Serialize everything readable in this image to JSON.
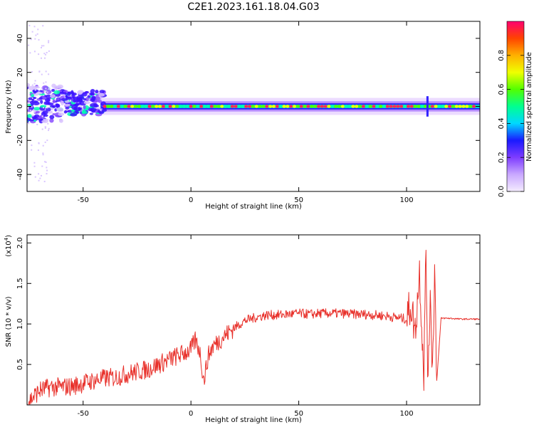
{
  "title": "C2E1.2023.161.18.04.G03",
  "colors": {
    "snr_line": "#e8302a",
    "background": "#ffffff",
    "colorbar_stops": [
      "#f4ecff",
      "#c9a8ff",
      "#7e3cff",
      "#1a1aff",
      "#00d8ff",
      "#00ff90",
      "#52ff00",
      "#f0ff00",
      "#ffb000",
      "#ff4400",
      "#ff0070"
    ]
  },
  "chart_data": [
    {
      "type": "heatmap",
      "xlabel": "Height of straight line (km)",
      "ylabel": "Frequency (Hz)",
      "xlim": [
        -76,
        134
      ],
      "ylim": [
        -50,
        50
      ],
      "xticks": [
        -50,
        0,
        50,
        100
      ],
      "xtick_labels": [
        "-50",
        "0",
        "50",
        "100"
      ],
      "yticks": [
        -40,
        -20,
        0,
        20,
        40
      ],
      "ytick_labels": [
        "-40",
        "-20",
        "0",
        "20",
        "40"
      ],
      "description_band": {
        "center_hz": 0,
        "halfwidth_hz": 2
      },
      "colorbar": {
        "label": "Normalized spectral amplitude",
        "range": [
          0.0,
          1.0
        ],
        "ticks": [
          0.0,
          0.2,
          0.4,
          0.6,
          0.8
        ],
        "tick_labels": [
          "0.0",
          "0.2",
          "0.4",
          "0.6",
          "0.8"
        ]
      }
    },
    {
      "type": "line",
      "xlabel": "Height of straight line (km)",
      "ylabel": "SNR (10 * v/v)",
      "multiplier_label": "(x10",
      "multiplier_exp": "4",
      "multiplier_close": ")",
      "xlim": [
        -76,
        134
      ],
      "ylim": [
        0.0,
        2.1
      ],
      "xticks": [
        -50,
        0,
        50,
        100
      ],
      "xtick_labels": [
        "-50",
        "0",
        "50",
        "100"
      ],
      "yticks": [
        0.5,
        1.0,
        1.5,
        2.0
      ],
      "ytick_labels": [
        "0.5",
        "1.0",
        "1.5",
        "2.0"
      ],
      "series": [
        {
          "x": [
            -76,
            -70,
            -65,
            -60,
            -55,
            -50,
            -45,
            -40,
            -35,
            -30,
            -25,
            -20,
            -15,
            -10,
            -5,
            0,
            2,
            4,
            6,
            8,
            10,
            15,
            20,
            25,
            30,
            35,
            40,
            45,
            50,
            55,
            60,
            65,
            70,
            75,
            80,
            85,
            90,
            95,
            100,
            102,
            104,
            106,
            108,
            109,
            110,
            111,
            112,
            113,
            114,
            116,
            120,
            125,
            130,
            134
          ],
          "values": [
            0.03,
            0.18,
            0.22,
            0.22,
            0.23,
            0.27,
            0.3,
            0.33,
            0.34,
            0.38,
            0.41,
            0.44,
            0.5,
            0.56,
            0.62,
            0.68,
            0.8,
            0.68,
            0.3,
            0.6,
            0.72,
            0.84,
            0.95,
            1.04,
            1.08,
            1.11,
            1.11,
            1.12,
            1.13,
            1.12,
            1.13,
            1.13,
            1.13,
            1.12,
            1.12,
            1.11,
            1.1,
            1.08,
            1.06,
            1.25,
            0.9,
            1.65,
            0.4,
            1.9,
            0.15,
            1.5,
            0.4,
            1.7,
            0.3,
            1.07,
            1.07,
            1.06,
            1.06,
            1.06
          ]
        }
      ]
    }
  ]
}
